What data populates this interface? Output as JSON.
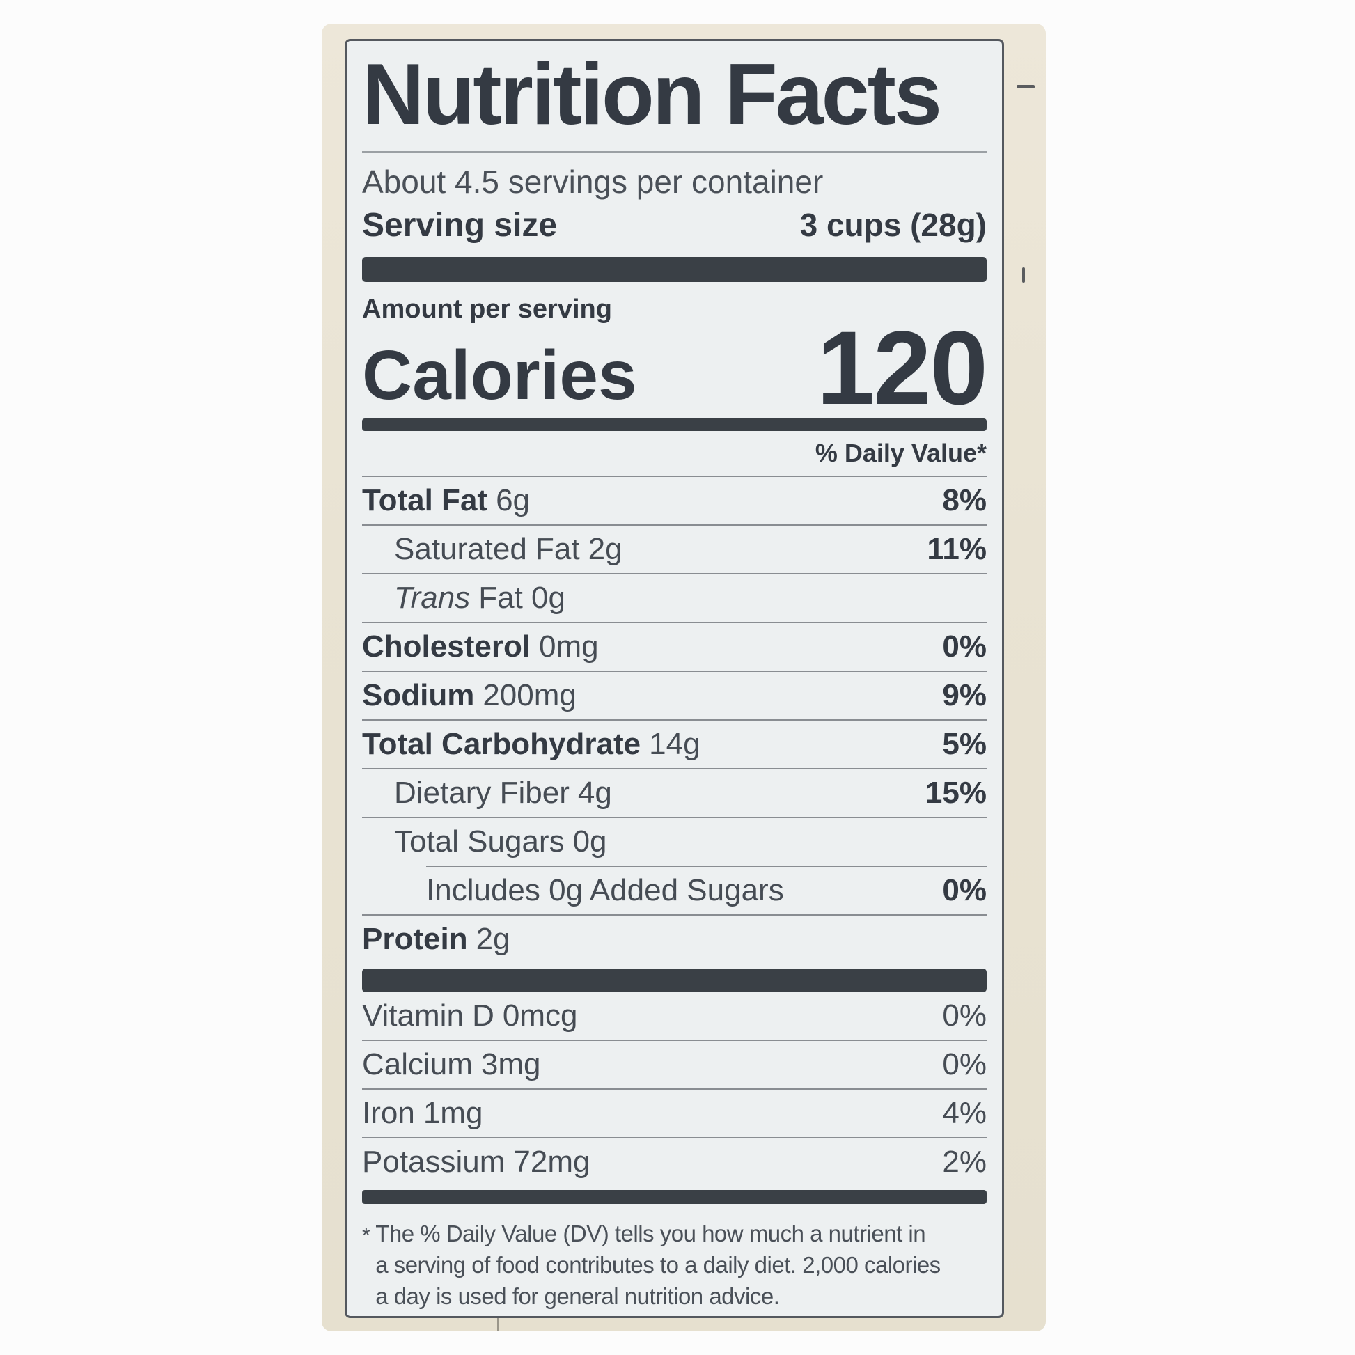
{
  "label": {
    "title": "Nutrition Facts",
    "servings_per_container": "About 4.5 servings per container",
    "serving_size_label": "Serving size",
    "serving_size_value": "3 cups (28g)",
    "amount_per_serving": "Amount per serving",
    "calories_label": "Calories",
    "calories_value": "120",
    "daily_value_header": "% Daily Value*",
    "nutrients": [
      {
        "lead": "Total Fat",
        "rest": "6g",
        "dv": "8%"
      },
      {
        "lead": "Saturated Fat",
        "rest": "2g",
        "dv": "11%"
      },
      {
        "lead": "Trans",
        "rest": "Fat 0g",
        "dv": ""
      },
      {
        "lead": "Cholesterol",
        "rest": "0mg",
        "dv": "0%"
      },
      {
        "lead": "Sodium",
        "rest": "200mg",
        "dv": "9%"
      },
      {
        "lead": "Total Carbohydrate",
        "rest": "14g",
        "dv": "5%"
      },
      {
        "lead": "Dietary Fiber",
        "rest": "4g",
        "dv": "15%"
      },
      {
        "lead": "Total Sugars",
        "rest": "0g",
        "dv": ""
      },
      {
        "lead": "Includes 0g Added Sugars",
        "rest": "",
        "dv": "0%"
      },
      {
        "lead": "Protein",
        "rest": "2g",
        "dv": ""
      }
    ],
    "vitamins": [
      {
        "lead": "Vitamin D",
        "rest": "0mcg",
        "dv": "0%"
      },
      {
        "lead": "Calcium",
        "rest": "3mg",
        "dv": "0%"
      },
      {
        "lead": "Iron",
        "rest": "1mg",
        "dv": "4%"
      },
      {
        "lead": "Potassium",
        "rest": "72mg",
        "dv": "2%"
      }
    ],
    "footnote_marker": "*",
    "footnote_lines": [
      "The % Daily Value (DV) tells you how much a nutrient in",
      "a serving of food contributes to a daily diet. 2,000 calories",
      "a day is used for general nutrition advice."
    ]
  },
  "colors": {
    "label_background": "#edf0f1",
    "package_background": "#e9e3d3",
    "ink": "#343a43",
    "bar": "#3a4046",
    "hairline": "#898d92"
  }
}
